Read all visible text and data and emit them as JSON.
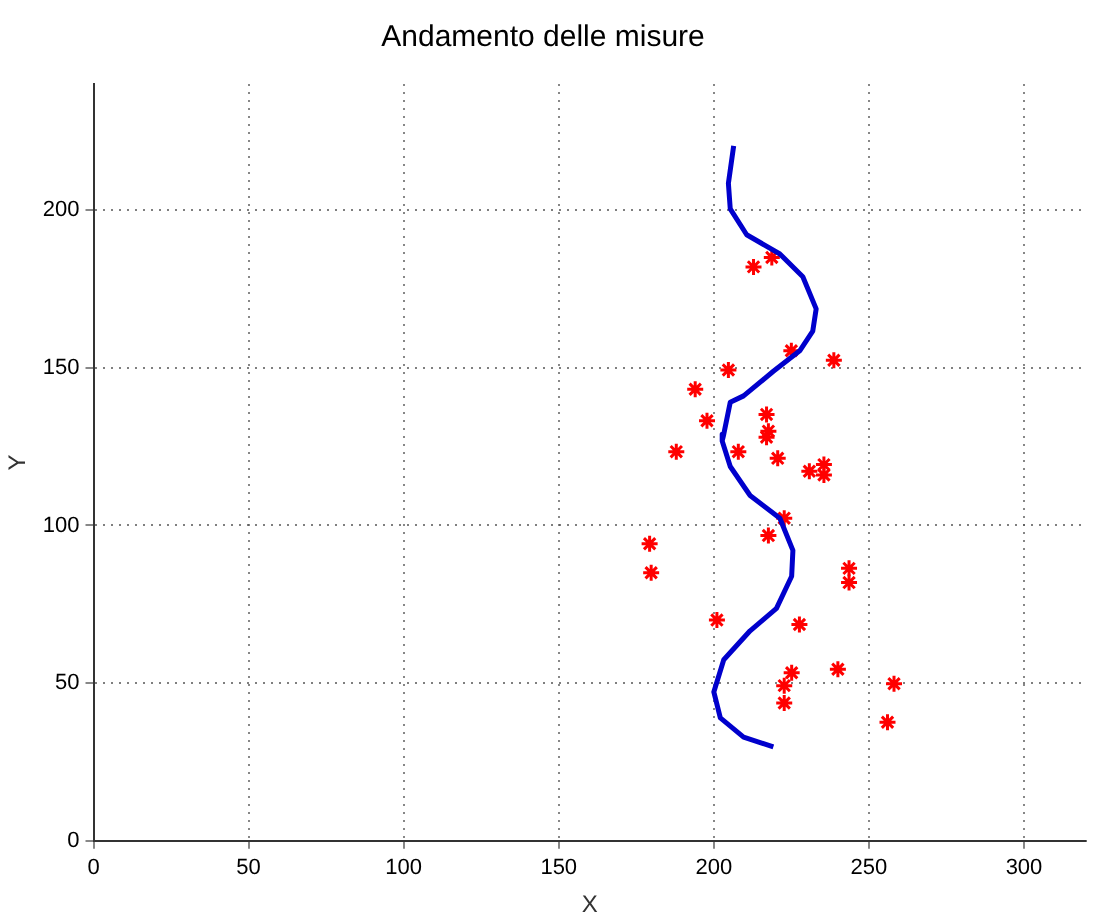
{
  "chart_data": {
    "type": "scatter",
    "title": "Andamento delle misure",
    "xlabel": "X",
    "ylabel": "Y",
    "xlim": [
      0,
      320
    ],
    "xticks": [
      0,
      50,
      100,
      150,
      200,
      250,
      300
    ],
    "ylim": [
      0,
      240
    ],
    "yticks": [
      0,
      50,
      100,
      150,
      200
    ],
    "grid": true,
    "legend": false,
    "series": [
      {
        "type": "line",
        "color": "#0000cc",
        "marker": "none",
        "line_style": "solid",
        "x": [
          206.4,
          204.7,
          205.3,
          210.6,
          221.3,
          228.7,
          233,
          231.9,
          227.7,
          219.2,
          209.6,
          205.3,
          203.2,
          202.7,
          205.3,
          211.7,
          221.3,
          225.5,
          225.1,
          220.2,
          211.7,
          203.2,
          200,
          202.1,
          209.6,
          219.2
        ],
        "values": [
          220.4,
          208.5,
          200.4,
          192.2,
          186.1,
          178.9,
          168.7,
          161.6,
          155.4,
          148.9,
          141.1,
          139.1,
          128.9,
          126.8,
          118.7,
          109.5,
          102.3,
          92.1,
          83.9,
          73.7,
          66.6,
          57.4,
          47.2,
          39,
          32.9,
          29.8
        ]
      },
      {
        "type": "scatter",
        "color": "#ff0000",
        "marker": "cross",
        "x": [
          212.8,
          218.7,
          225,
          238.7,
          204.7,
          194,
          197.8,
          217,
          217.6,
          217,
          187.9,
          207.9,
          220.6,
          230.8,
          235.5,
          235.5,
          222.7,
          222,
          217.6,
          179.3,
          179.8,
          243.6,
          243.6,
          201,
          227.6,
          225.1,
          240,
          222.7,
          222.7,
          258.1,
          256
        ],
        "values": [
          182,
          185,
          155.4,
          152.4,
          149.3,
          143.2,
          133.2,
          135.2,
          129.9,
          128,
          123.4,
          123.4,
          121.3,
          117.2,
          119.3,
          116,
          102.3,
          null,
          96.8,
          94.2,
          85,
          86.4,
          81.9,
          70,
          68.6,
          53.3,
          54.4,
          49.2,
          43.7,
          49.8,
          37.6
        ]
      }
    ]
  }
}
